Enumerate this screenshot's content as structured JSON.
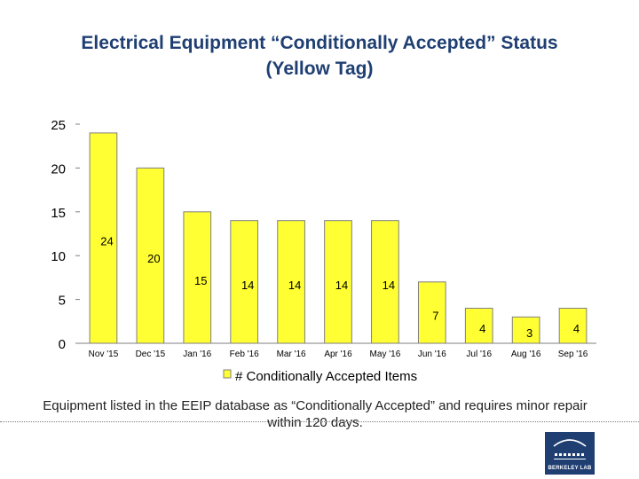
{
  "slide": {
    "title_line1": "Electrical Equipment “Conditionally Accepted” Status",
    "title_line2": "(Yellow Tag)",
    "caption": "Equipment listed in the EEIP database as “Conditionally Accepted” and requires minor repair within 120 days.",
    "logo_text": "BERKELEY LAB"
  },
  "chart_data": {
    "type": "bar",
    "categories": [
      "Nov '15",
      "Dec '15",
      "Jan '16",
      "Feb '16",
      "Mar '16",
      "Apr '16",
      "May '16",
      "Jun '16",
      "Jul '16",
      "Aug '16",
      "Sep '16"
    ],
    "series": [
      {
        "name": "# Conditionally Accepted Items",
        "values": [
          24,
          20,
          15,
          14,
          14,
          14,
          14,
          7,
          4,
          3,
          4
        ]
      }
    ],
    "data_labels": [
      "24",
      "20",
      "15",
      "14",
      "14",
      "14",
      "14",
      "7",
      "4",
      "3",
      "4"
    ],
    "ylim": [
      0,
      25
    ],
    "yticks": [
      0,
      5,
      10,
      15,
      20,
      25
    ],
    "grid": false,
    "legend_position": "bottom",
    "colors": {
      "bar_fill": "#ffff33",
      "bar_stroke": "#7f7f7f",
      "axis": "#7f7f7f",
      "text": "#000000",
      "title": "#1f3f73",
      "brand": "#1f3f73"
    }
  }
}
